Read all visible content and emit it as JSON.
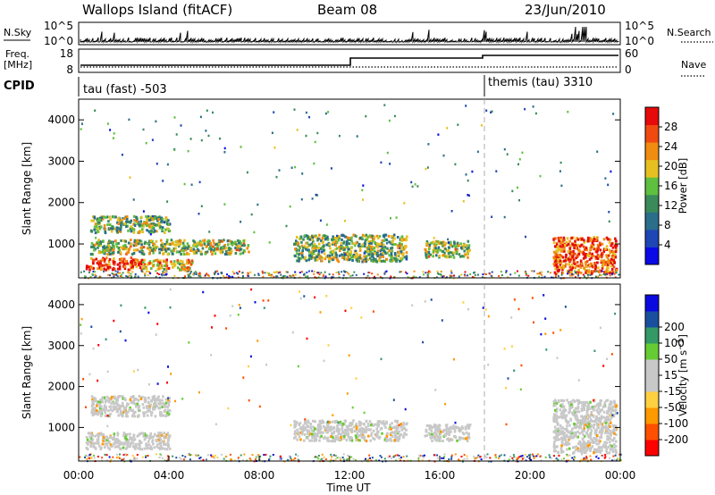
{
  "header": {
    "station": "Wallops Island (fitACF)",
    "beam": "Beam 08",
    "date": "23/Jun/2010"
  },
  "side_labels": {
    "nsky": "N.Sky",
    "freq_line1": "Freq.",
    "freq_line2": "[MHz]",
    "cpid": "CPID",
    "nsearch": "N.Search",
    "nave": "Nave"
  },
  "noise_panel": {
    "left_ticks": [
      "10^5",
      "10^0"
    ],
    "right_ticks": [
      "10^5",
      "10^0"
    ]
  },
  "freq_panel": {
    "left_ticks": [
      "18",
      "8"
    ],
    "right_ticks": [
      "60",
      "0"
    ]
  },
  "cpid_panel": {
    "segments": [
      {
        "label": "tau (fast) -503",
        "start_hour": 0,
        "end_hour": 18
      },
      {
        "label": "themis (tau) 3310",
        "start_hour": 18,
        "end_hour": 24
      }
    ]
  },
  "colors": {
    "power": [
      "#0a0ae6",
      "#1e46b4",
      "#2a6e8a",
      "#3a8a5a",
      "#5fbf3f",
      "#e6c020",
      "#f08c10",
      "#f04a10",
      "#e60a0a"
    ],
    "velocity": [
      "#ff0000",
      "#ff5000",
      "#ff9900",
      "#ffd040",
      "#c8c8c8",
      "#c8c8c8",
      "#66cc33",
      "#339966",
      "#1a4f9f",
      "#0a0ae0"
    ]
  },
  "chart_data": [
    {
      "type": "heatmap",
      "name": "power",
      "ylabel": "Slant Range [km]",
      "yticks": [
        "1000",
        "2000",
        "3000",
        "4000"
      ],
      "ylim": [
        180,
        4500
      ],
      "xlim": [
        0,
        24
      ],
      "colorbar_label": "Power [dB]",
      "colorbar_ticks": [
        "4",
        "8",
        "12",
        "16",
        "20",
        "24",
        "28"
      ],
      "regions": [
        {
          "x0": 0.3,
          "x1": 2.8,
          "y0": 400,
          "y1": 700,
          "v": 28
        },
        {
          "x0": 2.8,
          "x1": 5.0,
          "y0": 400,
          "y1": 650,
          "v": 20
        },
        {
          "x0": 0.5,
          "x1": 7.5,
          "y0": 780,
          "y1": 1130,
          "v": 16
        },
        {
          "x0": 0.5,
          "x1": 4.0,
          "y0": 1300,
          "y1": 1700,
          "v": 14
        },
        {
          "x0": 9.5,
          "x1": 14.5,
          "y0": 600,
          "y1": 1250,
          "v": 14
        },
        {
          "x0": 15.3,
          "x1": 17.3,
          "y0": 700,
          "y1": 1100,
          "v": 16
        },
        {
          "x0": 21.0,
          "x1": 23.8,
          "y0": 300,
          "y1": 1200,
          "v": 26
        }
      ]
    },
    {
      "type": "heatmap",
      "name": "velocity",
      "ylabel": "Slant Range [km]",
      "yticks": [
        "1000",
        "2000",
        "3000",
        "4000"
      ],
      "ylim": [
        180,
        4500
      ],
      "xlim": [
        0,
        24
      ],
      "xlabel": "Time UT",
      "xticks": [
        "00:00",
        "04:00",
        "08:00",
        "12:00",
        "16:00",
        "20:00",
        "00:00"
      ],
      "colorbar_label": "Velocity [m s^-1]",
      "colorbar_ticks": [
        "-200",
        "-100",
        "-50",
        "-15",
        "15",
        "50",
        "100",
        "200"
      ],
      "regions": [
        {
          "x0": 0.3,
          "x1": 4.0,
          "y0": 500,
          "y1": 900,
          "v": 0
        },
        {
          "x0": 0.5,
          "x1": 4.0,
          "y0": 1300,
          "y1": 1800,
          "v": 0
        },
        {
          "x0": 9.5,
          "x1": 14.5,
          "y0": 700,
          "y1": 1200,
          "v": 0
        },
        {
          "x0": 15.3,
          "x1": 17.3,
          "y0": 700,
          "y1": 1100,
          "v": 0
        },
        {
          "x0": 21.0,
          "x1": 23.8,
          "y0": 400,
          "y1": 1700,
          "v": 0
        }
      ]
    }
  ]
}
